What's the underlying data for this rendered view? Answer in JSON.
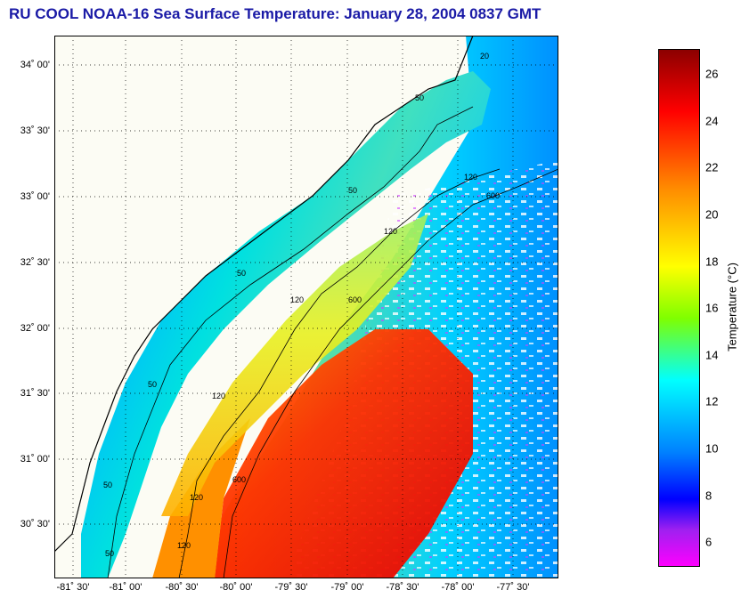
{
  "title": "RU COOL  NOAA-16  Sea Surface Temperature:  January 28, 2004 0837 GMT",
  "colorbar": {
    "label": "Temperature (°C)",
    "ticks": [
      "26",
      "24",
      "22",
      "20",
      "18",
      "16",
      "14",
      "12",
      "10",
      "8",
      "6"
    ],
    "stops": [
      {
        "color": "#8b0000",
        "at": 0
      },
      {
        "color": "#ff0000",
        "at": 0.12
      },
      {
        "color": "#ff8c00",
        "at": 0.27
      },
      {
        "color": "#ffff00",
        "at": 0.42
      },
      {
        "color": "#7fff00",
        "at": 0.52
      },
      {
        "color": "#00ffff",
        "at": 0.64
      },
      {
        "color": "#0080ff",
        "at": 0.78
      },
      {
        "color": "#0000ff",
        "at": 0.87
      },
      {
        "color": "#a020f0",
        "at": 0.93
      },
      {
        "color": "#ff00ff",
        "at": 1
      }
    ]
  },
  "latitudes": [
    "34˚ 00'",
    "33˚ 30'",
    "33˚ 00'",
    "32˚ 30'",
    "32˚ 00'",
    "31˚ 30'",
    "31˚ 00'",
    "30˚ 30'"
  ],
  "longitudes": [
    "-81˚ 30'",
    "-81˚ 00'",
    "-80˚ 30'",
    "-80˚ 00'",
    "-79˚ 30'",
    "-79˚ 00'",
    "-78˚ 30'",
    "-78˚ 00'",
    "-77˚ 30'"
  ],
  "contour_labels": [
    "50",
    "50",
    "50",
    "50",
    "50",
    "50",
    "120",
    "120",
    "120",
    "120",
    "120",
    "120",
    "600",
    "600",
    "600",
    "20"
  ],
  "colors": {
    "land": "#fcfcf4",
    "title": "#1a1aa6",
    "coast": "#000000",
    "grid": "#000000"
  }
}
